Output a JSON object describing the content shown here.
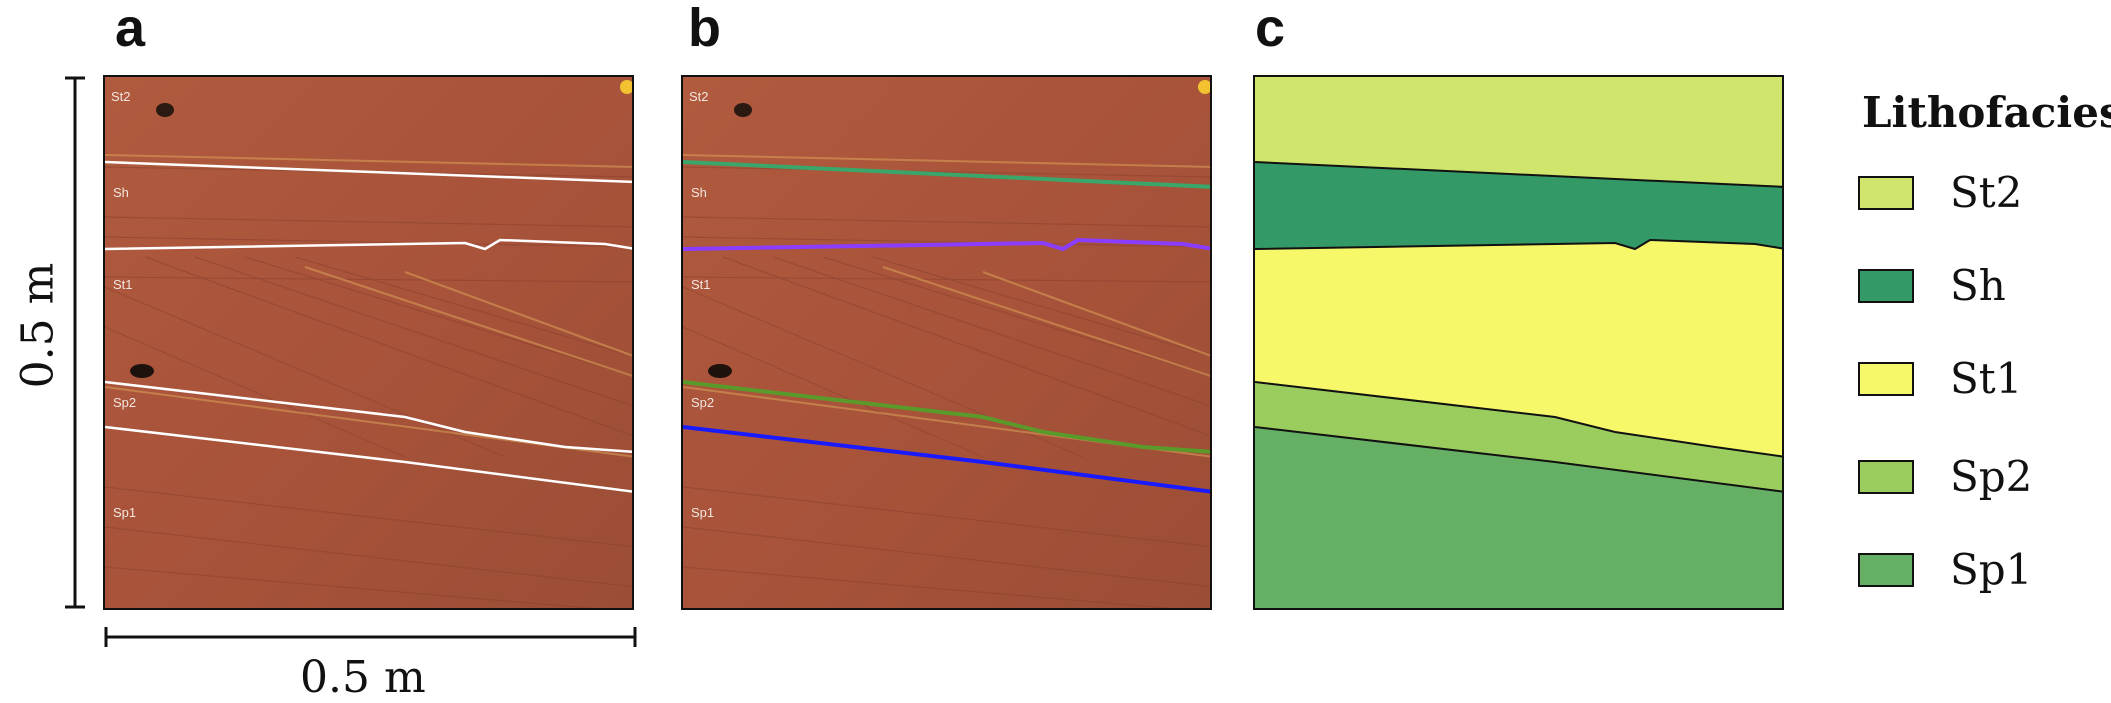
{
  "panels": {
    "a": {
      "letter": "a"
    },
    "b": {
      "letter": "b"
    },
    "c": {
      "letter": "c"
    }
  },
  "photo_labels": [
    "St2",
    "Sh",
    "St1",
    "Sp2",
    "Sp1"
  ],
  "scale": {
    "vertical": "0.5 m",
    "horizontal": "0.5 m"
  },
  "legend": {
    "title": "Lithofacies",
    "items": [
      {
        "label": "St2",
        "color": "#cfe56b"
      },
      {
        "label": "Sh",
        "color": "#339966"
      },
      {
        "label": "St1",
        "color": "#f7f76a"
      },
      {
        "label": "Sp2",
        "color": "#9acd5e"
      },
      {
        "label": "Sp1",
        "color": "#66b066"
      }
    ]
  },
  "boundary_colors_b": [
    "#3aa66a",
    "#8a3cff",
    "#5a9a2a",
    "#1a1aff"
  ]
}
